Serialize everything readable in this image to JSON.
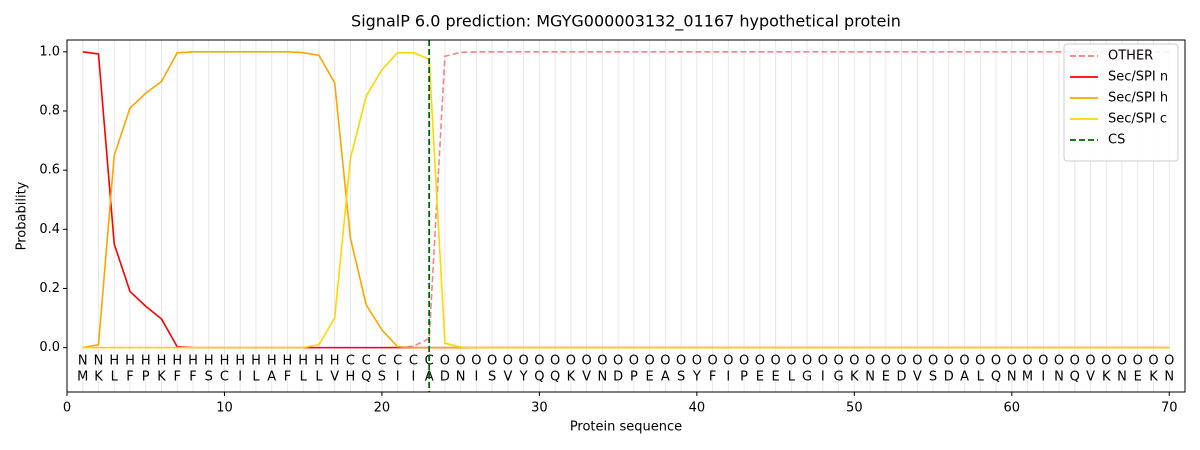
{
  "chart_data": {
    "type": "line",
    "title": "SignalP 6.0 prediction: MGYG000003132_01167 hypothetical protein",
    "x_label": "Protein sequence",
    "y_label": "Probability",
    "x": [
      1,
      2,
      3,
      4,
      5,
      6,
      7,
      8,
      9,
      10,
      11,
      12,
      13,
      14,
      15,
      16,
      17,
      18,
      19,
      20,
      21,
      22,
      23,
      24,
      25,
      26,
      27,
      28,
      29,
      30,
      31,
      32,
      33,
      34,
      35,
      36,
      37,
      38,
      39,
      40,
      41,
      42,
      43,
      44,
      45,
      46,
      47,
      48,
      49,
      50,
      51,
      52,
      53,
      54,
      55,
      56,
      57,
      58,
      59,
      60,
      61,
      62,
      63,
      64,
      65,
      66,
      67,
      68,
      69,
      70
    ],
    "sequence": [
      "M",
      "K",
      "L",
      "F",
      "P",
      "K",
      "F",
      "F",
      "S",
      "C",
      "I",
      "L",
      "A",
      "F",
      "L",
      "L",
      "V",
      "H",
      "Q",
      "S",
      "I",
      "I",
      "A",
      "D",
      "N",
      "I",
      "S",
      "V",
      "Y",
      "Q",
      "Q",
      "K",
      "V",
      "N",
      "D",
      "P",
      "E",
      "A",
      "S",
      "Y",
      "F",
      "I",
      "P",
      "E",
      "E",
      "L",
      "G",
      "I",
      "G",
      "K",
      "N",
      "E",
      "D",
      "V",
      "S",
      "D",
      "A",
      "L",
      "Q",
      "N",
      "M",
      "I",
      "N",
      "Q",
      "V",
      "K",
      "N",
      "E",
      "K",
      "N"
    ],
    "regions": [
      "N",
      "N",
      "H",
      "H",
      "H",
      "H",
      "H",
      "H",
      "H",
      "H",
      "H",
      "H",
      "H",
      "H",
      "H",
      "H",
      "H",
      "C",
      "C",
      "C",
      "C",
      "C",
      "C",
      "O",
      "O",
      "O",
      "O",
      "O",
      "O",
      "O",
      "O",
      "O",
      "O",
      "O",
      "O",
      "O",
      "O",
      "O",
      "O",
      "O",
      "O",
      "O",
      "O",
      "O",
      "O",
      "O",
      "O",
      "O",
      "O",
      "O",
      "O",
      "O",
      "O",
      "O",
      "O",
      "O",
      "O",
      "O",
      "O",
      "O",
      "O",
      "O",
      "O",
      "O",
      "O",
      "O",
      "O",
      "O",
      "O",
      "O"
    ],
    "region_colors": {
      "N": "#ff0000",
      "H": "#ffa500",
      "C": "#ffd700",
      "O": "#808080"
    },
    "series": [
      {
        "name": "OTHER",
        "color": "#f08080",
        "dashed": true,
        "values": [
          0,
          0,
          0,
          0,
          0,
          0,
          0,
          0,
          0,
          0,
          0,
          0,
          0,
          0,
          0,
          0,
          0,
          0,
          0,
          0,
          0,
          0.005,
          0.03,
          0.985,
          0.998,
          1,
          1,
          1,
          1,
          1,
          1,
          1,
          1,
          1,
          1,
          1,
          1,
          1,
          1,
          1,
          1,
          1,
          1,
          1,
          1,
          1,
          1,
          1,
          1,
          1,
          1,
          1,
          1,
          1,
          1,
          1,
          1,
          1,
          1,
          1,
          1,
          1,
          1,
          1,
          1,
          1,
          1,
          1,
          1,
          1
        ]
      },
      {
        "name": "Sec/SPI n",
        "color": "#ff0000",
        "dashed": false,
        "values": [
          1,
          0.993,
          0.35,
          0.19,
          0.14,
          0.097,
          0.003,
          0,
          0,
          0,
          0,
          0,
          0,
          0,
          0,
          0,
          0,
          0,
          0,
          0,
          0,
          0,
          0,
          0,
          0,
          0,
          0,
          0,
          0,
          0,
          0,
          0,
          0,
          0,
          0,
          0,
          0,
          0,
          0,
          0,
          0,
          0,
          0,
          0,
          0,
          0,
          0,
          0,
          0,
          0,
          0,
          0,
          0,
          0,
          0,
          0,
          0,
          0,
          0,
          0,
          0,
          0,
          0,
          0,
          0,
          0,
          0,
          0,
          0,
          0
        ]
      },
      {
        "name": "Sec/SPI h",
        "color": "#ffa500",
        "dashed": false,
        "values": [
          0,
          0.01,
          0.65,
          0.81,
          0.86,
          0.9,
          0.997,
          1,
          1,
          1,
          1,
          1,
          1,
          1,
          0.997,
          0.988,
          0.895,
          0.37,
          0.145,
          0.06,
          0.003,
          0,
          0,
          0,
          0,
          0,
          0,
          0,
          0,
          0,
          0,
          0,
          0,
          0,
          0,
          0,
          0,
          0,
          0,
          0,
          0,
          0,
          0,
          0,
          0,
          0,
          0,
          0,
          0,
          0,
          0,
          0,
          0,
          0,
          0,
          0,
          0,
          0,
          0,
          0,
          0,
          0,
          0,
          0,
          0,
          0,
          0,
          0,
          0,
          0
        ]
      },
      {
        "name": "Sec/SPI c",
        "color": "#ffd700",
        "dashed": false,
        "values": [
          0,
          0,
          0,
          0,
          0,
          0,
          0,
          0,
          0,
          0,
          0,
          0,
          0,
          0,
          0,
          0.01,
          0.1,
          0.64,
          0.85,
          0.94,
          0.997,
          0.997,
          0.975,
          0.015,
          0.002,
          0,
          0,
          0,
          0,
          0,
          0,
          0,
          0,
          0,
          0,
          0,
          0,
          0,
          0,
          0,
          0,
          0,
          0,
          0,
          0,
          0,
          0,
          0,
          0,
          0,
          0,
          0,
          0,
          0,
          0,
          0,
          0,
          0,
          0,
          0,
          0,
          0,
          0,
          0,
          0,
          0,
          0,
          0,
          0,
          0
        ]
      }
    ],
    "cs": {
      "name": "CS",
      "x": 23,
      "color": "#006400"
    },
    "xlim": [
      0,
      71
    ],
    "ylim": [
      -0.15,
      1.04
    ],
    "xticks": [
      0,
      10,
      20,
      30,
      40,
      50,
      60,
      70
    ],
    "yticks": [
      {
        "value": 0,
        "label": "0.0"
      },
      {
        "value": 0.2,
        "label": "0.2"
      },
      {
        "value": 0.4,
        "label": "0.4"
      },
      {
        "value": 0.6,
        "label": "0.6"
      },
      {
        "value": 0.8,
        "label": "0.8"
      },
      {
        "value": 1,
        "label": "1.0"
      }
    ],
    "legend": "upper right"
  }
}
